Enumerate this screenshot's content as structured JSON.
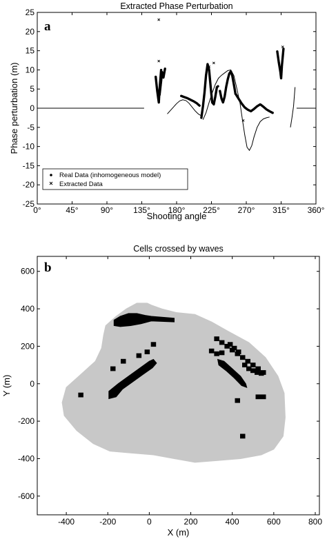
{
  "chart_data": [
    {
      "type": "scatter",
      "panel_label": "a",
      "title": "Extracted Phase Perturbation",
      "xlabel": "Shooting angle",
      "ylabel": "Phase perturbation (m)",
      "xlim": [
        0,
        360
      ],
      "ylim": [
        -25,
        25
      ],
      "xticks": [
        0,
        45,
        90,
        135,
        180,
        225,
        270,
        315,
        360
      ],
      "xtick_labels": [
        "0°",
        "45°",
        "90°",
        "135°",
        "180°",
        "225°",
        "270°",
        "315°",
        "360°"
      ],
      "yticks": [
        -25,
        -20,
        -15,
        -10,
        -5,
        0,
        5,
        10,
        15,
        20,
        25
      ],
      "ytick_labels": [
        "-25",
        "-20",
        "-15",
        "-10",
        "-5",
        "0",
        "5",
        "10",
        "15",
        "20",
        "25"
      ],
      "legend_position": "bottom-left",
      "series": [
        {
          "name": "Real Data (inhomogeneous model)",
          "marker": "line",
          "segments": [
            {
              "x": [
                0,
                40,
                80,
                120,
                138
              ],
              "y": [
                0,
                0,
                0,
                0,
                0
              ]
            },
            {
              "x": [
                168,
                172,
                176,
                180,
                184,
                188,
                192,
                196,
                200,
                204,
                208,
                212
              ],
              "y": [
                -1.5,
                -0.6,
                0.3,
                1.2,
                1.9,
                2.2,
                2.0,
                1.3,
                0.3,
                -0.7,
                -1.5,
                -2.0
              ]
            },
            {
              "x": [
                214,
                218,
                222,
                226,
                230,
                234,
                238,
                242,
                246,
                250,
                254,
                258,
                262
              ],
              "y": [
                -3.0,
                -1.2,
                1.5,
                4.0,
                6.2,
                7.8,
                8.6,
                9.2,
                9.8,
                10.0,
                8.5,
                5.0,
                1.2
              ]
            },
            {
              "x": [
                262,
                265,
                268,
                271,
                274,
                277,
                280,
                284,
                288,
                292,
                296,
                300
              ],
              "y": [
                1.2,
                -3.0,
                -7.0,
                -10.2,
                -11.0,
                -9.8,
                -7.5,
                -5.0,
                -3.5,
                -2.8,
                -2.5,
                -2.3
              ]
            },
            {
              "x": [
                327,
                329,
                331,
                333
              ],
              "y": [
                -5,
                -2.5,
                0.5,
                5.5
              ]
            },
            {
              "x": [
                335,
                345,
                355,
                360
              ],
              "y": [
                0,
                0,
                0,
                0
              ]
            }
          ]
        },
        {
          "name": "Extracted Data",
          "marker": "x",
          "segments": [
            {
              "x": [
                153,
                155,
                157,
                158,
                160
              ],
              "y": [
                8.2,
                4.5,
                1.5,
                5.0,
                10.0
              ]
            },
            {
              "x": [
                158,
                160,
                161,
                163,
                165
              ],
              "y": [
                3.5,
                7.2,
                9.5,
                8.0,
                10.3
              ]
            },
            {
              "x": [
                186,
                190,
                194,
                198,
                202,
                206,
                210
              ],
              "y": [
                3.2,
                2.9,
                2.6,
                2.2,
                1.8,
                1.3,
                0.6
              ]
            },
            {
              "x": [
                212,
                214,
                216,
                218,
                220,
                222,
                224,
                226,
                228,
                230,
                232,
                234
              ],
              "y": [
                -2.5,
                0.5,
                4.0,
                8.5,
                11.5,
                10.0,
                5.5,
                1.5,
                1.0,
                3.0,
                5.5,
                5.8
              ]
            },
            {
              "x": [
                236,
                238,
                240,
                242,
                244,
                246,
                248,
                250,
                252,
                254,
                256
              ],
              "y": [
                4.5,
                2.5,
                1.5,
                3.0,
                5.5,
                7.5,
                9.0,
                9.6,
                8.4,
                6.2,
                3.8
              ]
            },
            {
              "x": [
                256,
                260,
                264,
                268,
                272,
                276,
                280,
                284,
                288,
                292,
                296,
                300,
                304
              ],
              "y": [
                3.8,
                2.5,
                1.2,
                0.2,
                -0.4,
                -0.8,
                -0.2,
                0.5,
                1.0,
                0.4,
                -0.3,
                -0.8,
                -1.2
              ]
            },
            {
              "x": [
                310,
                312,
                314,
                315,
                316,
                318
              ],
              "y": [
                14.8,
                12.0,
                9.5,
                7.8,
                11.0,
                15.5
              ]
            }
          ],
          "points": [
            {
              "x": 157,
              "y": 23.1
            },
            {
              "x": 157,
              "y": 12.3
            },
            {
              "x": 222,
              "y": 10.8
            },
            {
              "x": 228,
              "y": 11.8
            },
            {
              "x": 266,
              "y": -3.2
            },
            {
              "x": 317,
              "y": 16.0
            }
          ]
        }
      ]
    },
    {
      "type": "heatmap",
      "panel_label": "b",
      "title": "Cells crossed by waves",
      "xlabel": "X (m)",
      "ylabel": "Y (m)",
      "xlim": [
        -540,
        820
      ],
      "ylim": [
        -700,
        680
      ],
      "xticks": [
        -400,
        -200,
        0,
        200,
        400,
        600,
        800
      ],
      "xtick_labels": [
        "-400",
        "-200",
        "0",
        "200",
        "400",
        "600",
        "800"
      ],
      "yticks": [
        -600,
        -400,
        -200,
        0,
        200,
        400,
        600
      ],
      "ytick_labels": [
        "-600",
        "-400",
        "-200",
        "0",
        "200",
        "400",
        "600"
      ],
      "cell_size_m": 25,
      "region_outline": [
        [
          -60,
          430
        ],
        [
          -10,
          430
        ],
        [
          10,
          420
        ],
        [
          60,
          400
        ],
        [
          130,
          380
        ],
        [
          220,
          370
        ],
        [
          300,
          330
        ],
        [
          380,
          280
        ],
        [
          480,
          220
        ],
        [
          560,
          140
        ],
        [
          620,
          40
        ],
        [
          650,
          -50
        ],
        [
          655,
          -180
        ],
        [
          645,
          -280
        ],
        [
          600,
          -350
        ],
        [
          540,
          -380
        ],
        [
          440,
          -400
        ],
        [
          330,
          -410
        ],
        [
          220,
          -420
        ],
        [
          120,
          -400
        ],
        [
          20,
          -380
        ],
        [
          -90,
          -370
        ],
        [
          -190,
          -360
        ],
        [
          -270,
          -320
        ],
        [
          -350,
          -250
        ],
        [
          -410,
          -170
        ],
        [
          -420,
          -100
        ],
        [
          -400,
          -20
        ],
        [
          -330,
          50
        ],
        [
          -260,
          120
        ],
        [
          -230,
          190
        ],
        [
          -220,
          260
        ],
        [
          -210,
          310
        ],
        [
          -160,
          360
        ],
        [
          -110,
          400
        ]
      ],
      "dense_regions": [
        [
          [
            -170,
            340
          ],
          [
            -140,
            360
          ],
          [
            -100,
            375
          ],
          [
            -60,
            375
          ],
          [
            -20,
            365
          ],
          [
            10,
            360
          ],
          [
            120,
            350
          ],
          [
            120,
            330
          ],
          [
            10,
            335
          ],
          [
            -40,
            320
          ],
          [
            -90,
            310
          ],
          [
            -140,
            305
          ],
          [
            -170,
            310
          ]
        ],
        [
          [
            -195,
            -80
          ],
          [
            -195,
            -40
          ],
          [
            -150,
            0
          ],
          [
            -100,
            40
          ],
          [
            -50,
            80
          ],
          [
            0,
            120
          ],
          [
            20,
            130
          ],
          [
            35,
            110
          ],
          [
            15,
            85
          ],
          [
            -30,
            50
          ],
          [
            -80,
            10
          ],
          [
            -130,
            -30
          ],
          [
            -160,
            -70
          ]
        ],
        [
          [
            330,
            130
          ],
          [
            360,
            120
          ],
          [
            400,
            80
          ],
          [
            440,
            40
          ],
          [
            465,
            0
          ],
          [
            470,
            -20
          ],
          [
            445,
            -10
          ],
          [
            410,
            30
          ],
          [
            370,
            70
          ],
          [
            335,
            100
          ]
        ]
      ],
      "sparse_cells": [
        [
          -330,
          -60
        ],
        [
          -175,
          80
        ],
        [
          -125,
          120
        ],
        [
          -50,
          150
        ],
        [
          -10,
          170
        ],
        [
          20,
          210
        ],
        [
          325,
          240
        ],
        [
          350,
          220
        ],
        [
          375,
          200
        ],
        [
          400,
          180
        ],
        [
          425,
          160
        ],
        [
          450,
          140
        ],
        [
          475,
          120
        ],
        [
          500,
          100
        ],
        [
          525,
          80
        ],
        [
          550,
          60
        ],
        [
          300,
          175
        ],
        [
          325,
          160
        ],
        [
          350,
          165
        ],
        [
          390,
          210
        ],
        [
          410,
          190
        ],
        [
          430,
          170
        ],
        [
          460,
          100
        ],
        [
          480,
          80
        ],
        [
          500,
          70
        ],
        [
          520,
          60
        ],
        [
          540,
          55
        ],
        [
          525,
          -70
        ],
        [
          550,
          -70
        ],
        [
          425,
          -90
        ],
        [
          450,
          -280
        ]
      ]
    }
  ]
}
